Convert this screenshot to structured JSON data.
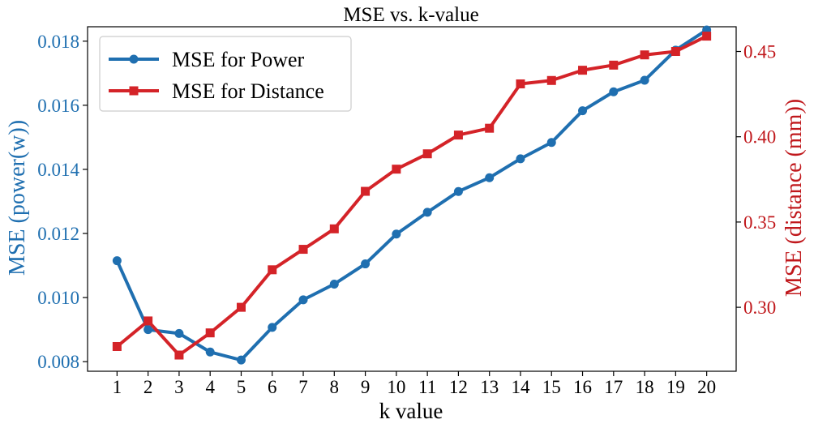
{
  "chart_data": {
    "type": "line",
    "title": "MSE vs. k-value",
    "xlabel": "k value",
    "ylabel_left": "MSE (power(w))",
    "ylabel_right": "MSE (distance (mm))",
    "x": [
      1,
      2,
      3,
      4,
      5,
      6,
      7,
      8,
      9,
      10,
      11,
      12,
      13,
      14,
      15,
      16,
      17,
      18,
      19,
      20
    ],
    "x_ticks": [
      "1",
      "2",
      "3",
      "4",
      "5",
      "6",
      "7",
      "8",
      "9",
      "10",
      "11",
      "12",
      "13",
      "14",
      "15",
      "16",
      "17",
      "18",
      "19",
      "20"
    ],
    "y_left_ticks": [
      "0.008",
      "0.010",
      "0.012",
      "0.014",
      "0.016",
      "0.018"
    ],
    "y_left_tick_values": [
      0.008,
      0.01,
      0.012,
      0.014,
      0.016,
      0.018
    ],
    "y_right_ticks": [
      "0.30",
      "0.35",
      "0.40",
      "0.45"
    ],
    "y_right_tick_values": [
      0.3,
      0.35,
      0.4,
      0.45
    ],
    "ylim_left": [
      0.0077,
      0.01845
    ],
    "ylim_right": [
      0.2625,
      0.4645
    ],
    "grid": false,
    "legend_position": "top-left",
    "series": [
      {
        "name": "MSE for Power",
        "axis": "left",
        "color": "#1f6fb0",
        "marker": "circle",
        "values": [
          0.01115,
          0.009,
          0.00888,
          0.0083,
          0.00805,
          0.00907,
          0.00993,
          0.01042,
          0.01105,
          0.01198,
          0.01266,
          0.01331,
          0.01374,
          0.01433,
          0.01484,
          0.01583,
          0.01642,
          0.01678,
          0.01772,
          0.01835
        ]
      },
      {
        "name": "MSE for Distance",
        "axis": "right",
        "color": "#d42328",
        "marker": "square",
        "values": [
          0.277,
          0.292,
          0.272,
          0.285,
          0.3,
          0.322,
          0.334,
          0.346,
          0.368,
          0.381,
          0.39,
          0.401,
          0.405,
          0.431,
          0.433,
          0.439,
          0.442,
          0.448,
          0.45,
          0.459
        ]
      }
    ]
  }
}
